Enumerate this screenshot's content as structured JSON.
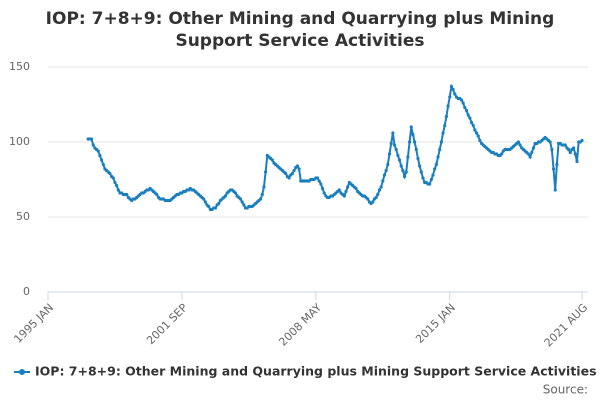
{
  "chart_data": {
    "type": "line",
    "title": "IOP: 7+8+9: Other Mining and Quarrying plus Mining Support Service Activities",
    "source": "Source:",
    "categories": [
      "1995 JAN",
      null,
      null,
      null,
      null,
      null,
      null,
      null,
      null,
      null,
      null,
      null,
      null,
      null,
      null,
      null,
      null,
      null,
      null,
      null,
      null,
      null,
      null,
      null,
      null,
      null,
      null,
      null,
      null,
      null,
      null,
      null,
      null,
      null,
      null,
      null,
      null,
      null,
      null,
      null,
      null,
      null,
      null,
      null,
      null,
      null,
      null,
      null,
      null,
      null,
      null,
      null,
      null,
      null,
      null,
      null,
      null,
      null,
      null,
      null,
      null,
      null,
      null,
      null,
      null,
      null,
      null,
      null,
      null,
      null,
      null,
      null,
      null,
      null,
      null,
      null,
      null,
      null,
      null,
      null,
      "2001 SEP",
      null,
      null,
      null,
      null,
      null,
      null,
      null,
      null,
      null,
      null,
      null,
      null,
      null,
      null,
      null,
      null,
      null,
      null,
      null,
      null,
      null,
      null,
      null,
      null,
      null,
      null,
      null,
      null,
      null,
      null,
      null,
      null,
      null,
      null,
      null,
      null,
      null,
      null,
      null,
      null,
      null,
      null,
      null,
      null,
      null,
      null,
      null,
      null,
      null,
      null,
      null,
      null,
      null,
      null,
      null,
      null,
      null,
      null,
      null,
      null,
      null,
      null,
      null,
      null,
      null,
      null,
      null,
      null,
      null,
      null,
      null,
      null,
      null,
      null,
      null,
      null,
      null,
      null,
      null,
      "2008 MAY",
      null,
      null,
      null,
      null,
      null,
      null,
      null,
      null,
      null,
      null,
      null,
      null,
      null,
      null,
      null,
      null,
      null,
      null,
      null,
      null,
      null,
      null,
      null,
      null,
      null,
      null,
      null,
      null,
      null,
      null,
      null,
      null,
      null,
      null,
      null,
      null,
      null,
      null,
      null,
      null,
      null,
      null,
      null,
      null,
      null,
      null,
      null,
      null,
      null,
      null,
      null,
      null,
      null,
      null,
      null,
      null,
      null,
      null,
      null,
      null,
      null,
      null,
      null,
      null,
      null,
      null,
      null,
      null,
      null,
      null,
      null,
      null,
      null,
      null,
      null,
      null,
      null,
      null,
      null,
      "2015 JAN",
      null,
      null,
      null,
      null,
      null,
      null,
      null,
      null,
      null,
      null,
      null,
      null,
      null,
      null,
      null,
      null,
      null,
      null,
      null,
      null,
      null,
      null,
      null,
      null,
      null,
      null,
      null,
      null,
      null,
      null,
      null,
      null,
      null,
      null,
      null,
      null,
      null,
      null,
      null,
      null,
      null,
      null,
      null,
      null,
      null,
      null,
      null,
      null,
      null,
      null,
      null,
      null,
      null,
      null,
      null,
      null,
      null,
      null,
      null,
      null,
      null,
      null,
      null,
      null,
      null,
      null,
      null,
      null,
      null,
      null,
      null,
      null,
      null,
      null,
      null,
      null,
      null,
      null,
      "2021 AUG"
    ],
    "series": [
      {
        "name": "IOP: 7+8+9: Other Mining and Quarrying plus Mining Support Service Activities",
        "color": "#1a7fbf",
        "values": [
          null,
          null,
          null,
          null,
          null,
          null,
          null,
          null,
          null,
          null,
          null,
          null,
          null,
          null,
          null,
          null,
          null,
          null,
          null,
          null,
          null,
          null,
          null,
          null,
          102,
          102,
          102,
          98,
          96,
          95,
          94,
          91,
          88,
          85,
          82,
          81,
          80,
          79,
          77,
          76,
          73,
          71,
          68,
          66,
          66,
          65,
          65,
          65,
          63,
          62,
          61,
          62,
          62,
          63,
          64,
          65,
          66,
          66,
          67,
          68,
          68,
          69,
          68,
          67,
          66,
          65,
          63,
          62,
          62,
          62,
          61,
          61,
          61,
          61,
          62,
          63,
          64,
          65,
          65,
          66,
          66,
          67,
          67,
          68,
          68,
          69,
          68,
          68,
          67,
          66,
          65,
          64,
          63,
          62,
          60,
          58,
          57,
          55,
          55,
          56,
          56,
          58,
          59,
          61,
          62,
          63,
          64,
          66,
          67,
          68,
          68,
          67,
          66,
          64,
          63,
          62,
          60,
          58,
          56,
          56,
          57,
          57,
          57,
          58,
          59,
          60,
          61,
          62,
          65,
          70,
          80,
          91,
          90,
          89,
          88,
          86,
          85,
          84,
          83,
          82,
          81,
          80,
          79,
          77,
          76,
          78,
          79,
          81,
          83,
          84,
          82,
          74,
          74,
          74,
          74,
          74,
          74,
          75,
          75,
          75,
          76,
          76,
          74,
          72,
          69,
          66,
          64,
          63,
          63,
          64,
          64,
          65,
          66,
          67,
          68,
          66,
          65,
          64,
          67,
          70,
          73,
          72,
          71,
          70,
          69,
          67,
          66,
          65,
          64,
          64,
          63,
          62,
          60,
          59,
          60,
          62,
          63,
          65,
          68,
          70,
          74,
          78,
          81,
          85,
          92,
          99,
          106,
          98,
          95,
          91,
          88,
          84,
          81,
          77,
          80,
          90,
          100,
          110,
          105,
          100,
          95,
          89,
          84,
          80,
          76,
          73,
          73,
          72,
          72,
          75,
          78,
          82,
          85,
          90,
          95,
          100,
          106,
          111,
          117,
          124,
          130,
          137,
          135,
          132,
          130,
          129,
          129,
          128,
          126,
          123,
          121,
          118,
          116,
          113,
          111,
          108,
          106,
          104,
          101,
          99,
          98,
          97,
          96,
          95,
          94,
          93,
          93,
          92,
          92,
          91,
          91,
          92,
          94,
          95,
          95,
          95,
          95,
          96,
          97,
          98,
          99,
          100,
          98,
          96,
          95,
          94,
          93,
          92,
          90,
          93,
          96,
          99,
          99,
          100,
          100,
          101,
          102,
          103,
          102,
          101,
          100,
          95,
          82,
          68,
          85,
          99,
          99,
          98,
          98,
          98,
          96,
          95,
          93,
          95,
          96,
          92,
          87,
          100,
          100,
          101
        ]
      }
    ],
    "ylim": [
      0,
      150
    ],
    "yticks": [
      0,
      50,
      100,
      150
    ],
    "grid": true
  }
}
